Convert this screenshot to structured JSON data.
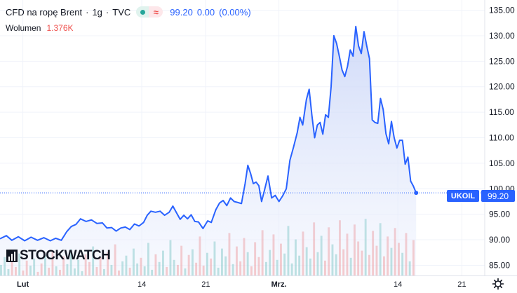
{
  "legend": {
    "symbol": "CFD na ropę Brent",
    "interval": "1g",
    "source": "TVC",
    "last": "99.20",
    "change": "0.00",
    "change_pct": "(0.00%)",
    "volume_label": "Wolumen",
    "volume_value": "1.376K"
  },
  "price_badge": {
    "symbol": "UKOIL",
    "price": "99.20"
  },
  "watermark": "STOCKWATCH",
  "icons": [
    "eye-dot-icon",
    "wave-icon",
    "gear-icon",
    "stockwatch-logo-icon"
  ],
  "colors": {
    "line": "#2962ff",
    "area_top": "#c8d4f7",
    "vol_up": "#26a69a",
    "vol_down": "#ef5350",
    "badge": "#2962ff"
  },
  "chart_data": {
    "type": "line",
    "title": "CFD na ropę Brent · 1g · TVC",
    "ylim": [
      83,
      137
    ],
    "y_ticks": [
      "135.00",
      "130.00",
      "125.00",
      "120.00",
      "115.00",
      "110.00",
      "105.00",
      "100.00",
      "95.00",
      "90.00",
      "85.00"
    ],
    "x_ticks": [
      {
        "label": "Lut",
        "day": 0,
        "bold": true
      },
      {
        "label": "14",
        "day": 13,
        "bold": false
      },
      {
        "label": "21",
        "day": 20,
        "bold": false
      },
      {
        "label": "Mrz.",
        "day": 28,
        "bold": true
      },
      {
        "label": "14",
        "day": 41,
        "bold": false
      },
      {
        "label": "21",
        "day": 48,
        "bold": false
      }
    ],
    "xlim": [
      -2.5,
      50.5
    ],
    "grid": true,
    "last_value": 99.2,
    "series": [
      {
        "points": [
          [
            -2.5,
            90.2
          ],
          [
            -1.8,
            90.8
          ],
          [
            -1.2,
            89.9
          ],
          [
            -0.5,
            90.6
          ],
          [
            0.2,
            89.8
          ],
          [
            0.9,
            90.5
          ],
          [
            1.6,
            89.9
          ],
          [
            2.3,
            90.4
          ],
          [
            3.0,
            89.8
          ],
          [
            3.6,
            90.3
          ],
          [
            4.2,
            89.9
          ],
          [
            4.8,
            91.6
          ],
          [
            5.3,
            92.6
          ],
          [
            5.8,
            93.0
          ],
          [
            6.3,
            94.1
          ],
          [
            6.9,
            93.6
          ],
          [
            7.5,
            93.9
          ],
          [
            8.1,
            93.2
          ],
          [
            8.7,
            93.3
          ],
          [
            9.2,
            92.3
          ],
          [
            9.7,
            92.4
          ],
          [
            10.2,
            91.7
          ],
          [
            10.7,
            92.3
          ],
          [
            11.2,
            92.5
          ],
          [
            11.7,
            92.0
          ],
          [
            12.2,
            93.1
          ],
          [
            12.7,
            92.7
          ],
          [
            13.2,
            93.4
          ],
          [
            13.6,
            94.8
          ],
          [
            14.0,
            95.6
          ],
          [
            14.5,
            95.4
          ],
          [
            15.0,
            95.6
          ],
          [
            15.5,
            94.8
          ],
          [
            16.0,
            95.4
          ],
          [
            16.4,
            96.6
          ],
          [
            16.8,
            95.3
          ],
          [
            17.2,
            94.0
          ],
          [
            17.6,
            94.8
          ],
          [
            18.0,
            94.1
          ],
          [
            18.4,
            94.9
          ],
          [
            18.8,
            93.6
          ],
          [
            19.2,
            93.5
          ],
          [
            19.7,
            92.2
          ],
          [
            20.2,
            93.7
          ],
          [
            20.6,
            93.4
          ],
          [
            21.1,
            95.9
          ],
          [
            21.5,
            97.2
          ],
          [
            21.9,
            97.7
          ],
          [
            22.3,
            96.7
          ],
          [
            22.7,
            98.2
          ],
          [
            23.1,
            97.5
          ],
          [
            23.5,
            97.3
          ],
          [
            23.9,
            97.1
          ],
          [
            24.3,
            101.0
          ],
          [
            24.6,
            104.6
          ],
          [
            24.9,
            103.0
          ],
          [
            25.2,
            101.0
          ],
          [
            25.5,
            101.3
          ],
          [
            25.8,
            100.6
          ],
          [
            26.1,
            97.5
          ],
          [
            26.4,
            99.6
          ],
          [
            26.8,
            102.5
          ],
          [
            27.2,
            98.2
          ],
          [
            27.6,
            98.7
          ],
          [
            28.0,
            97.5
          ],
          [
            28.4,
            98.6
          ],
          [
            28.8,
            100.0
          ],
          [
            29.2,
            105.6
          ],
          [
            29.6,
            108.2
          ],
          [
            30.0,
            111.0
          ],
          [
            30.3,
            114.0
          ],
          [
            30.6,
            112.5
          ],
          [
            31.0,
            117.5
          ],
          [
            31.3,
            119.5
          ],
          [
            31.6,
            114.4
          ],
          [
            31.9,
            110.0
          ],
          [
            32.2,
            112.5
          ],
          [
            32.5,
            113.0
          ],
          [
            32.8,
            110.7
          ],
          [
            33.1,
            114.5
          ],
          [
            33.4,
            114.0
          ],
          [
            33.7,
            120.0
          ],
          [
            34.0,
            130.0
          ],
          [
            34.3,
            128.5
          ],
          [
            34.6,
            126.0
          ],
          [
            34.9,
            123.3
          ],
          [
            35.2,
            122.0
          ],
          [
            35.5,
            124.0
          ],
          [
            35.8,
            127.2
          ],
          [
            36.1,
            126.0
          ],
          [
            36.4,
            131.8
          ],
          [
            36.7,
            128.0
          ],
          [
            37.0,
            126.5
          ],
          [
            37.3,
            130.8
          ],
          [
            37.6,
            128.0
          ],
          [
            37.9,
            125.5
          ],
          [
            38.2,
            113.5
          ],
          [
            38.5,
            113.0
          ],
          [
            38.8,
            112.8
          ],
          [
            39.1,
            117.7
          ],
          [
            39.4,
            115.5
          ],
          [
            39.7,
            110.8
          ],
          [
            40.0,
            108.8
          ],
          [
            40.3,
            113.2
          ],
          [
            40.6,
            110.0
          ],
          [
            40.9,
            108.0
          ],
          [
            41.2,
            109.5
          ],
          [
            41.5,
            109.5
          ],
          [
            41.8,
            104.8
          ],
          [
            42.1,
            106.2
          ],
          [
            42.4,
            101.5
          ],
          [
            42.7,
            100.5
          ],
          [
            43.0,
            99.2
          ]
        ]
      }
    ],
    "volume_scale_max": 1.0,
    "volume": [
      0.15,
      0.26,
      0.09,
      0.28,
      0.12,
      0.31,
      0.07,
      0.21,
      0.14,
      0.24,
      0.05,
      0.17,
      0.29,
      0.11,
      0.34,
      0.13,
      0.08,
      0.27,
      0.16,
      0.37,
      0.1,
      0.22,
      0.06,
      0.3,
      0.19,
      0.41,
      0.12,
      0.26,
      0.09,
      0.33,
      0.15,
      0.44,
      0.07,
      0.2,
      0.28,
      0.11,
      0.38,
      0.17,
      0.25,
      0.13,
      0.46,
      0.08,
      0.3,
      0.19,
      0.35,
      0.12,
      0.5,
      0.22,
      0.15,
      0.42,
      0.1,
      0.29,
      0.37,
      0.18,
      0.55,
      0.14,
      0.32,
      0.24,
      0.48,
      0.11,
      0.38,
      0.27,
      0.6,
      0.16,
      0.41,
      0.2,
      0.53,
      0.33,
      0.13,
      0.47,
      0.26,
      0.64,
      0.19,
      0.36,
      0.58,
      0.22,
      0.45,
      0.31,
      0.7,
      0.17,
      0.51,
      0.28,
      0.62,
      0.4,
      0.24,
      0.75,
      0.33,
      0.56,
      0.21,
      0.68,
      0.44,
      0.3,
      0.78,
      0.37,
      0.59,
      0.25,
      0.72,
      0.48,
      0.35,
      0.8,
      0.29,
      0.63,
      0.42,
      0.74,
      0.27,
      0.55,
      0.39,
      0.67,
      0.46,
      0.32,
      0.6,
      0.2,
      0.5
    ]
  }
}
